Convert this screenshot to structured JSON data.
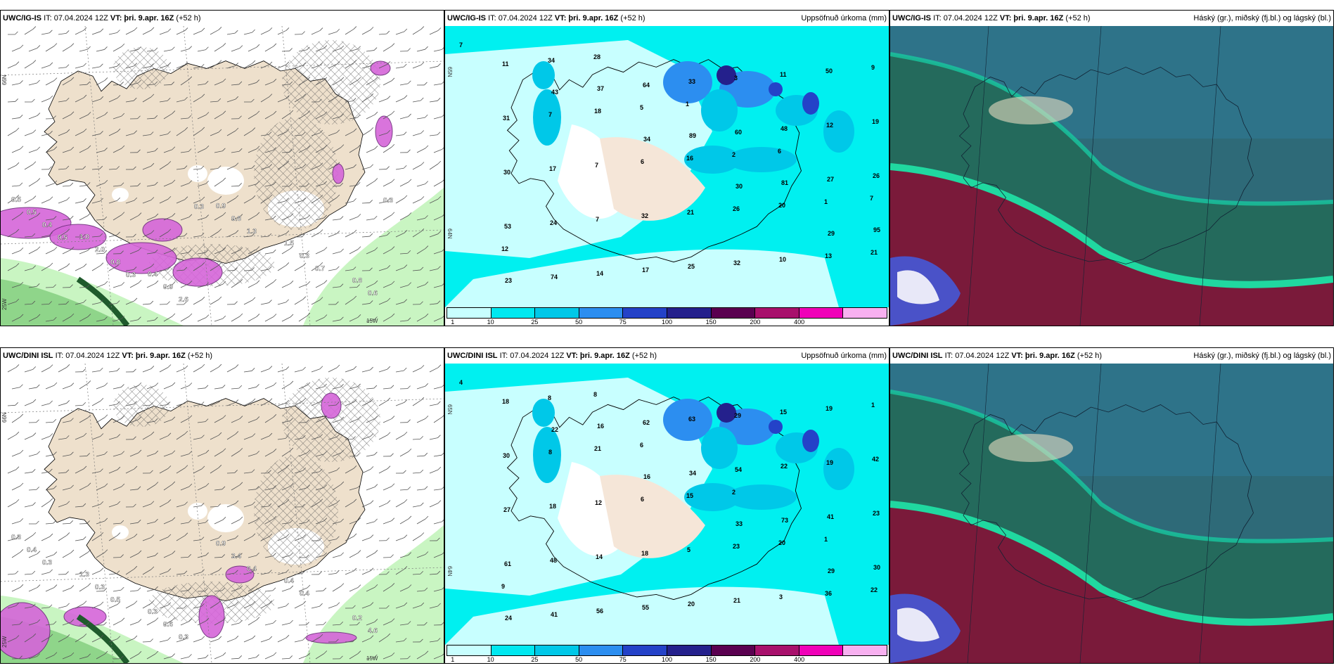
{
  "colorbar": {
    "colors": [
      "#c8ffff",
      "#00e8f0",
      "#00c8e8",
      "#2c8ef0",
      "#2442c8",
      "#24208c",
      "#5a0050",
      "#a8106c",
      "#f000b8",
      "#f8b0f0"
    ],
    "ticks": [
      "1",
      "10",
      "25",
      "50",
      "75",
      "100",
      "150",
      "200",
      "400"
    ]
  },
  "panels": [
    {
      "model": "UWC/IG-IS",
      "it": "IT: 07.04.2024 12Z",
      "vt_label": "VT:",
      "vt": "þri. 9.apr. 16Z",
      "lead": "(+52 h)",
      "title": "",
      "type": "wind",
      "axis": {
        "lat": "66N",
        "lon1": "25W",
        "lon2": "15W"
      },
      "values": [
        "0.5",
        "1.0",
        "0.4",
        "0.9",
        "1.5",
        "0.8",
        "0.5",
        "2.0",
        "0.9",
        "0.8",
        "0.3",
        "0.6",
        "0.4",
        "0.8",
        "2.6",
        "1.3",
        "0.7",
        "0.3",
        "0.5",
        "0.3",
        "0.3"
      ]
    },
    {
      "model": "UWC/IG-IS",
      "it": "IT: 07.04.2024 12Z",
      "vt_label": "VT:",
      "vt": "þri. 9.apr. 16Z",
      "lead": "(+52 h)",
      "title": "Uppsöfnuð úrkoma (mm)",
      "type": "precip",
      "axis": {
        "lat": "65N",
        "lat2": "64N"
      },
      "values": [
        "7",
        "43",
        "34",
        "30",
        "29",
        "23",
        "37",
        "89",
        "81",
        "95",
        "74",
        "64",
        "60",
        "27",
        "53",
        "14",
        "33",
        "48",
        "26",
        "24",
        "17",
        "3",
        "12",
        "30",
        "7",
        "25",
        "11",
        "19",
        "17",
        "32",
        "32",
        "50",
        "31",
        "7",
        "21",
        "10",
        "9",
        "7",
        "6",
        "26",
        "13",
        "11",
        "18",
        "16",
        "20",
        "21",
        "34",
        "5",
        "2",
        "1",
        "12",
        "28",
        "1",
        "6",
        "7"
      ]
    },
    {
      "model": "UWC/IG-IS",
      "it": "IT: 07.04.2024 12Z",
      "vt_label": "VT:",
      "vt": "þri. 9.apr. 16Z",
      "lead": "(+52 h)",
      "title": "Háský (gr.), miðský (fj.bl.) og lágský (bl.)",
      "type": "cloud"
    },
    {
      "model": "UWC/DINI ISL",
      "it": "IT: 07.04.2024 12Z",
      "vt_label": "VT:",
      "vt": "þri. 9.apr. 16Z",
      "lead": "(+52 h)",
      "title": "",
      "type": "wind",
      "axis": {
        "lat": "66N",
        "lon1": "25W",
        "lon2": "15W"
      },
      "values": [
        "0.3",
        "1.3",
        "0.3",
        "0.9",
        "0.4",
        "0.2",
        "0.4",
        "0.3",
        "0.6",
        "3.4",
        "0.4",
        "4.6",
        "0.3",
        "0.5",
        "0.3",
        "0.4"
      ]
    },
    {
      "model": "UWC/DINI ISL",
      "it": "IT: 07.04.2024 12Z",
      "vt_label": "VT:",
      "vt": "þri. 9.apr. 16Z",
      "lead": "(+52 h)",
      "title": "Uppsöfnuð úrkoma (mm)",
      "type": "precip",
      "axis": {
        "lat": "65N",
        "lat2": "64N"
      },
      "values": [
        "4",
        "22",
        "16",
        "33",
        "29",
        "24",
        "16",
        "34",
        "73",
        "30",
        "41",
        "62",
        "54",
        "41",
        "61",
        "56",
        "63",
        "22",
        "23",
        "48",
        "55",
        "29",
        "19",
        "27",
        "14",
        "20",
        "15",
        "42",
        "18",
        "18",
        "21",
        "19",
        "30",
        "12",
        "5",
        "3",
        "1",
        "8",
        "6",
        "23",
        "36",
        "18",
        "21",
        "15",
        "20",
        "22",
        "8",
        "6",
        "2",
        "1",
        "9",
        "8"
      ]
    },
    {
      "model": "UWC/DINI ISL",
      "it": "IT: 07.04.2024 12Z",
      "vt_label": "VT:",
      "vt": "þri. 9.apr. 16Z",
      "lead": "(+52 h)",
      "title": "Háský (gr.), miðský (fj.bl.) og lágský (bl.)",
      "type": "cloud"
    }
  ]
}
